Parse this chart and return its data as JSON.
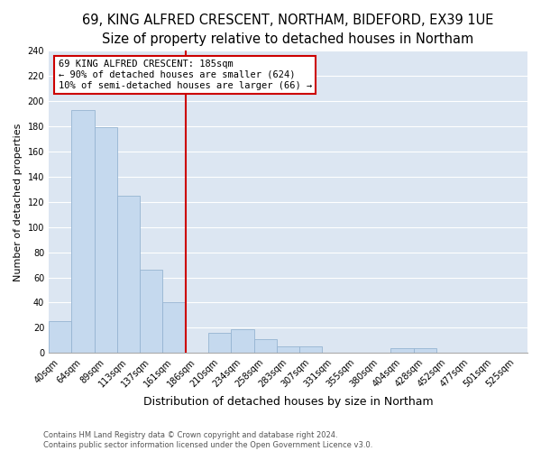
{
  "title": "69, KING ALFRED CRESCENT, NORTHAM, BIDEFORD, EX39 1UE",
  "subtitle": "Size of property relative to detached houses in Northam",
  "xlabel": "Distribution of detached houses by size in Northam",
  "ylabel": "Number of detached properties",
  "bar_labels": [
    "40sqm",
    "64sqm",
    "89sqm",
    "113sqm",
    "137sqm",
    "161sqm",
    "186sqm",
    "210sqm",
    "234sqm",
    "258sqm",
    "283sqm",
    "307sqm",
    "331sqm",
    "355sqm",
    "380sqm",
    "404sqm",
    "428sqm",
    "452sqm",
    "477sqm",
    "501sqm",
    "525sqm"
  ],
  "bar_heights": [
    25,
    193,
    179,
    125,
    66,
    40,
    0,
    16,
    19,
    11,
    5,
    5,
    0,
    0,
    0,
    4,
    4,
    0,
    0,
    0,
    0
  ],
  "bar_color": "#c5d9ee",
  "bar_edge_color": "#96b4d2",
  "vline_color": "#cc0000",
  "annotation_title": "69 KING ALFRED CRESCENT: 185sqm",
  "annotation_line1": "← 90% of detached houses are smaller (624)",
  "annotation_line2": "10% of semi-detached houses are larger (66) →",
  "annotation_box_facecolor": "#ffffff",
  "annotation_border_color": "#cc0000",
  "ylim": [
    0,
    240
  ],
  "yticks": [
    0,
    20,
    40,
    60,
    80,
    100,
    120,
    140,
    160,
    180,
    200,
    220,
    240
  ],
  "footer_line1": "Contains HM Land Registry data © Crown copyright and database right 2024.",
  "footer_line2": "Contains public sector information licensed under the Open Government Licence v3.0.",
  "fig_facecolor": "#ffffff",
  "plot_bg_color": "#dce6f2",
  "grid_color": "#ffffff",
  "title_fontsize": 10.5,
  "subtitle_fontsize": 9.5,
  "ylabel_fontsize": 8,
  "xlabel_fontsize": 9,
  "tick_fontsize": 7,
  "footer_fontsize": 6,
  "annotation_fontsize": 7.5
}
